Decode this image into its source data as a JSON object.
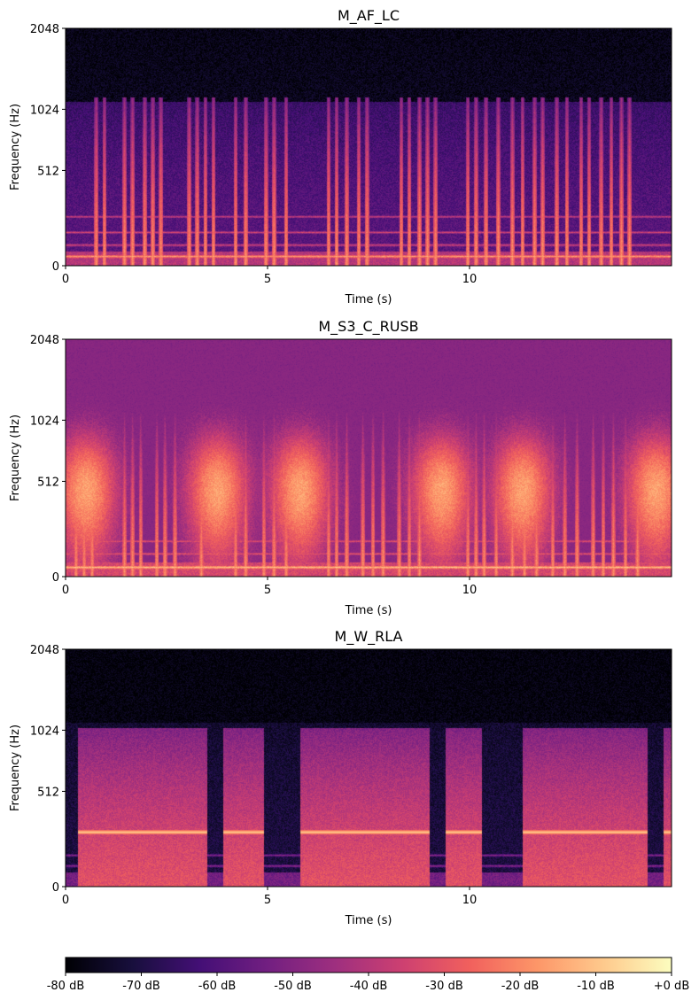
{
  "chart_data": [
    {
      "type": "heatmap",
      "title": "M_AF_LC",
      "xlabel": "Time (s)",
      "ylabel": "Frequency (Hz)",
      "xlim": [
        0,
        15
      ],
      "ylim": [
        0,
        2048
      ],
      "x_ticks": [
        0,
        5,
        10
      ],
      "x_tick_labels": [
        "0",
        "5",
        "10"
      ],
      "y_ticks": [
        0,
        512,
        1024,
        2048
      ],
      "y_tick_labels": [
        "0",
        "512",
        "1024",
        "2048"
      ],
      "y_scale": "mel",
      "pattern": "clicks",
      "background_energy": 0.28,
      "hum_bands_hz": [
        40,
        90,
        150,
        230
      ],
      "event_times_s": [
        0.75,
        0.95,
        1.45,
        1.65,
        1.95,
        2.15,
        2.35,
        3.05,
        3.25,
        3.45,
        3.65,
        4.2,
        4.45,
        4.95,
        5.15,
        5.45,
        6.5,
        6.7,
        6.95,
        7.25,
        7.45,
        8.3,
        8.5,
        8.75,
        8.95,
        9.15,
        9.95,
        10.15,
        10.4,
        10.7,
        11.05,
        11.3,
        11.6,
        11.8,
        12.15,
        12.4,
        12.75,
        12.95,
        13.25,
        13.5,
        13.75,
        13.95
      ],
      "event_max_freq_hz": 1150
    },
    {
      "type": "heatmap",
      "title": "M_S3_C_RUSB",
      "xlabel": "Time (s)",
      "ylabel": "Frequency (Hz)",
      "xlim": [
        0,
        15
      ],
      "ylim": [
        0,
        2048
      ],
      "x_ticks": [
        0,
        5,
        10
      ],
      "x_tick_labels": [
        "0",
        "5",
        "10"
      ],
      "y_ticks": [
        0,
        512,
        1024,
        2048
      ],
      "y_tick_labels": [
        "0",
        "512",
        "1024",
        "2048"
      ],
      "y_scale": "mel",
      "pattern": "clicks-with-blobs",
      "background_energy": 0.36,
      "hum_bands_hz": [
        40,
        100,
        160
      ],
      "event_times_s": [
        0.25,
        0.45,
        0.65,
        1.45,
        1.65,
        1.85,
        2.25,
        2.45,
        2.7,
        3.35,
        4.2,
        4.45,
        4.9,
        5.15,
        5.45,
        6.5,
        6.7,
        6.95,
        7.35,
        7.6,
        7.85,
        8.25,
        8.5,
        8.75,
        9.95,
        10.15,
        10.35,
        10.65,
        11.05,
        11.35,
        11.65,
        12.05,
        12.35,
        12.65,
        13.05,
        13.3,
        13.55,
        13.85,
        14.15
      ],
      "event_max_freq_hz": 1100,
      "blob_centers_s": [
        0.5,
        3.75,
        5.8,
        9.3,
        11.3,
        14.6
      ]
    },
    {
      "type": "heatmap",
      "title": "M_W_RLA",
      "xlabel": "Time (s)",
      "ylabel": "Frequency (Hz)",
      "xlim": [
        0,
        15
      ],
      "ylim": [
        0,
        2048
      ],
      "x_ticks": [
        0,
        5,
        10
      ],
      "x_tick_labels": [
        "0",
        "5",
        "10"
      ],
      "y_ticks": [
        0,
        512,
        1024,
        2048
      ],
      "y_tick_labels": [
        "0",
        "512",
        "1024",
        "2048"
      ],
      "y_scale": "mel",
      "pattern": "blocks",
      "background_energy": 0.12,
      "hum_bands_hz": [
        90,
        140
      ],
      "blocks_s": [
        [
          0.3,
          3.5
        ],
        [
          3.9,
          4.9
        ],
        [
          5.8,
          9.0
        ],
        [
          9.4,
          10.3
        ],
        [
          11.3,
          14.4
        ],
        [
          14.8,
          15.0
        ]
      ],
      "tonal_band_hz": 260
    }
  ],
  "colorbar": {
    "colormap": "magma",
    "range_db": [
      -80,
      0
    ],
    "tick_labels": [
      "-80 dB",
      "-70 dB",
      "-60 dB",
      "-50 dB",
      "-40 dB",
      "-30 dB",
      "-20 dB",
      "-10 dB",
      "+0 dB"
    ],
    "colors": [
      "#000004",
      "#180f3d",
      "#440f76",
      "#721f81",
      "#9e2f7f",
      "#cd4071",
      "#f1605d",
      "#fd9668",
      "#feca8d",
      "#fcfdbf"
    ]
  }
}
